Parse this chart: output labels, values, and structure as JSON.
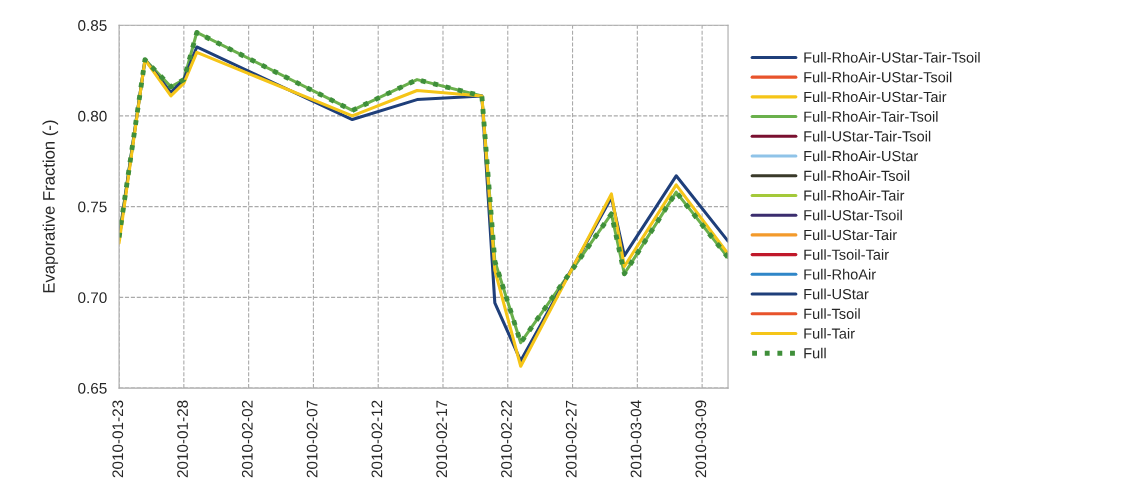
{
  "chart_data": {
    "type": "line",
    "ylabel": "Evaporative Fraction (-)",
    "x": [
      "2010-01-23",
      "2010-01-25",
      "2010-01-27",
      "2010-01-28",
      "2010-01-29",
      "2010-02-10",
      "2010-02-15",
      "2010-02-20",
      "2010-02-21",
      "2010-02-23",
      "2010-03-02",
      "2010-03-03",
      "2010-03-07",
      "2010-03-11"
    ],
    "xlim": [
      "2010-01-23",
      "2010-03-11"
    ],
    "xticks": [
      "2010-01-23",
      "2010-01-28",
      "2010-02-02",
      "2010-02-07",
      "2010-02-12",
      "2010-02-17",
      "2010-02-22",
      "2010-02-27",
      "2010-03-04",
      "2010-03-09"
    ],
    "ylim": [
      0.65,
      0.85
    ],
    "yticks": [
      {
        "value": 0.65,
        "label": "0.65"
      },
      {
        "value": 0.7,
        "label": "0.70"
      },
      {
        "value": 0.75,
        "label": "0.75"
      },
      {
        "value": 0.8,
        "label": "0.80"
      },
      {
        "value": 0.85,
        "label": "0.85"
      }
    ],
    "grid": true,
    "legend": "right",
    "marker": "none",
    "series": [
      {
        "name": "Full-RhoAir-UStar-Tair-Tsoil",
        "color": "#1f3f7a",
        "values": [
          null,
          null,
          null,
          null,
          null,
          null,
          null,
          null,
          null,
          null,
          null,
          null,
          null,
          null
        ]
      },
      {
        "name": "Full-RhoAir-UStar-Tsoil",
        "color": "#e8532b",
        "values": [
          null,
          null,
          null,
          null,
          null,
          null,
          null,
          null,
          null,
          null,
          null,
          null,
          null,
          null
        ]
      },
      {
        "name": "Full-RhoAir-UStar-Tair",
        "color": "#f5c518",
        "values": [
          null,
          null,
          null,
          null,
          null,
          null,
          null,
          null,
          null,
          null,
          null,
          null,
          null,
          null
        ]
      },
      {
        "name": "Full-RhoAir-Tair-Tsoil",
        "color": "#6ab04c",
        "values": [
          0.733,
          0.831,
          0.816,
          0.82,
          0.846,
          0.803,
          0.82,
          0.811,
          0.72,
          0.675,
          0.746,
          0.713,
          0.758,
          0.722
        ]
      },
      {
        "name": "Full-UStar-Tair-Tsoil",
        "color": "#7a1030",
        "values": [
          null,
          null,
          null,
          null,
          null,
          null,
          null,
          null,
          null,
          null,
          null,
          null,
          null,
          null
        ]
      },
      {
        "name": "Full-RhoAir-UStar",
        "color": "#8fc3e8",
        "values": [
          null,
          null,
          null,
          null,
          null,
          null,
          null,
          null,
          null,
          null,
          null,
          null,
          null,
          null
        ]
      },
      {
        "name": "Full-RhoAir-Tsoil",
        "color": "#3a3a2a",
        "values": [
          null,
          null,
          null,
          null,
          null,
          null,
          null,
          null,
          null,
          null,
          null,
          null,
          null,
          null
        ]
      },
      {
        "name": "Full-RhoAir-Tair",
        "color": "#a4c93a",
        "values": [
          null,
          null,
          null,
          null,
          null,
          null,
          null,
          null,
          null,
          null,
          null,
          null,
          null,
          null
        ]
      },
      {
        "name": "Full-UStar-Tsoil",
        "color": "#3b2d6e",
        "values": [
          null,
          null,
          null,
          null,
          null,
          null,
          null,
          null,
          null,
          null,
          null,
          null,
          null,
          null
        ]
      },
      {
        "name": "Full-UStar-Tair",
        "color": "#f39a2b",
        "values": [
          null,
          null,
          null,
          null,
          null,
          null,
          null,
          null,
          null,
          null,
          null,
          null,
          null,
          null
        ]
      },
      {
        "name": "Full-Tsoil-Tair",
        "color": "#c0182a",
        "values": [
          null,
          null,
          null,
          null,
          null,
          null,
          null,
          null,
          null,
          null,
          null,
          null,
          null,
          null
        ]
      },
      {
        "name": "Full-RhoAir",
        "color": "#2f86c8",
        "values": [
          null,
          null,
          null,
          null,
          null,
          null,
          null,
          null,
          null,
          null,
          null,
          null,
          null,
          null
        ]
      },
      {
        "name": "Full-UStar",
        "color": "#1f3f7a",
        "values": [
          0.732,
          0.831,
          0.813,
          0.82,
          0.838,
          0.798,
          0.809,
          0.811,
          0.697,
          0.665,
          0.755,
          0.723,
          0.767,
          0.731
        ]
      },
      {
        "name": "Full-Tsoil",
        "color": "#e8532b",
        "values": [
          null,
          null,
          null,
          null,
          null,
          null,
          null,
          null,
          null,
          null,
          null,
          null,
          null,
          null
        ]
      },
      {
        "name": "Full-Tair",
        "color": "#f5c518",
        "values": [
          0.73,
          0.831,
          0.811,
          0.818,
          0.835,
          0.8,
          0.814,
          0.811,
          0.715,
          0.662,
          0.757,
          0.717,
          0.762,
          0.724
        ]
      },
      {
        "name": "Full",
        "color": "#3f8f3a",
        "line_style": "dotted",
        "values": [
          0.733,
          0.831,
          0.816,
          0.82,
          0.846,
          0.803,
          0.82,
          0.811,
          0.72,
          0.675,
          0.746,
          0.713,
          0.758,
          0.722
        ]
      }
    ]
  }
}
